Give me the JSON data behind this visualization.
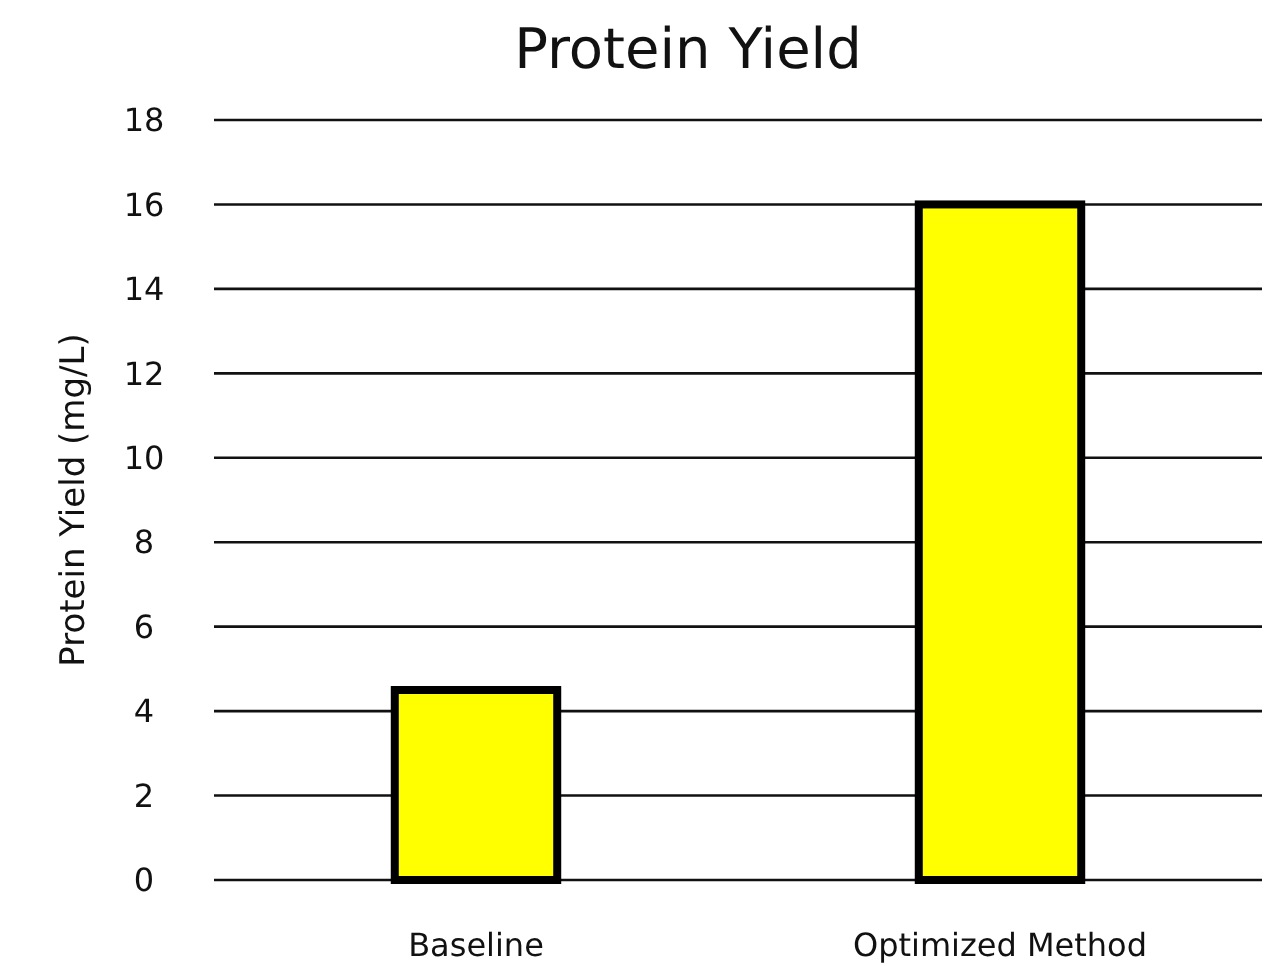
{
  "chart_data": {
    "type": "bar",
    "title": "Protein Yield",
    "ylabel": "Protein Yield (mg/L)",
    "categories": [
      "Baseline",
      "Optimized Method"
    ],
    "values": [
      4.5,
      16
    ],
    "color": "#ffff00",
    "ylim": [
      0,
      18
    ],
    "yticks": [
      0,
      2,
      4,
      6,
      8,
      10,
      12,
      14,
      16,
      18
    ],
    "grid": "y"
  }
}
